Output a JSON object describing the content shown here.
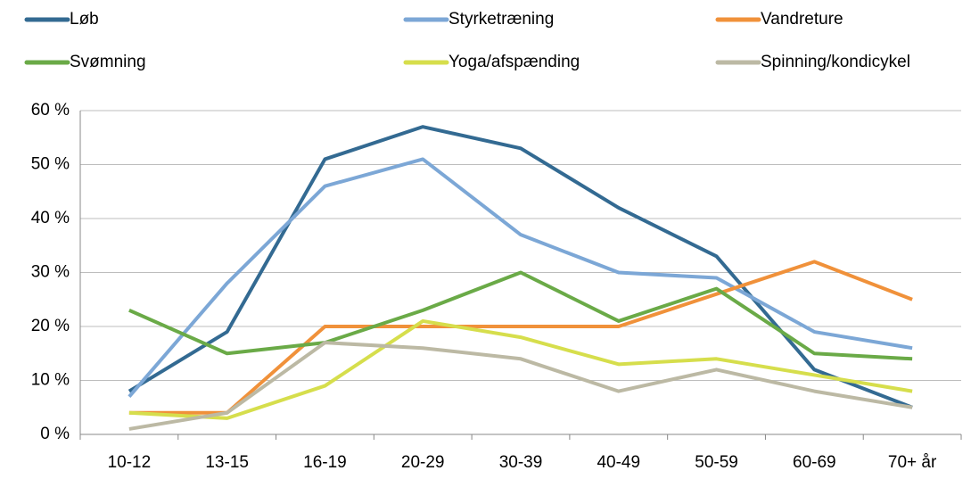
{
  "chart_data": {
    "type": "line",
    "categories": [
      "10-12",
      "13-15",
      "16-19",
      "20-29",
      "30-39",
      "40-49",
      "50-59",
      "60-69",
      "70+ år"
    ],
    "series": [
      {
        "name": "Løb",
        "color": "#336a92",
        "values": [
          8,
          19,
          51,
          57,
          53,
          42,
          33,
          12,
          5
        ]
      },
      {
        "name": "Styrketræning",
        "color": "#7ca7d6",
        "values": [
          7,
          28,
          46,
          51,
          37,
          30,
          29,
          19,
          16
        ]
      },
      {
        "name": "Vandreture",
        "color": "#f0913a",
        "values": [
          4,
          4,
          20,
          20,
          20,
          20,
          26,
          32,
          25
        ]
      },
      {
        "name": "Svømning",
        "color": "#6aaa47",
        "values": [
          23,
          15,
          17,
          23,
          30,
          21,
          27,
          15,
          14
        ]
      },
      {
        "name": "Yoga/afspænding",
        "color": "#d6de4c",
        "values": [
          4,
          3,
          9,
          21,
          18,
          13,
          14,
          11,
          8
        ]
      },
      {
        "name": "Spinning/kondicykel",
        "color": "#bcb9a4",
        "values": [
          1,
          4,
          17,
          16,
          14,
          8,
          12,
          8,
          5
        ]
      }
    ],
    "ylim": [
      0,
      60
    ],
    "yticks": [
      {
        "value": 0,
        "label": "0 %"
      },
      {
        "value": 10,
        "label": "10 %"
      },
      {
        "value": 20,
        "label": "20 %"
      },
      {
        "value": 30,
        "label": "30 %"
      },
      {
        "value": 40,
        "label": "40 %"
      },
      {
        "value": 50,
        "label": "50 %"
      },
      {
        "value": 60,
        "label": "60 %"
      }
    ],
    "grid": true
  }
}
